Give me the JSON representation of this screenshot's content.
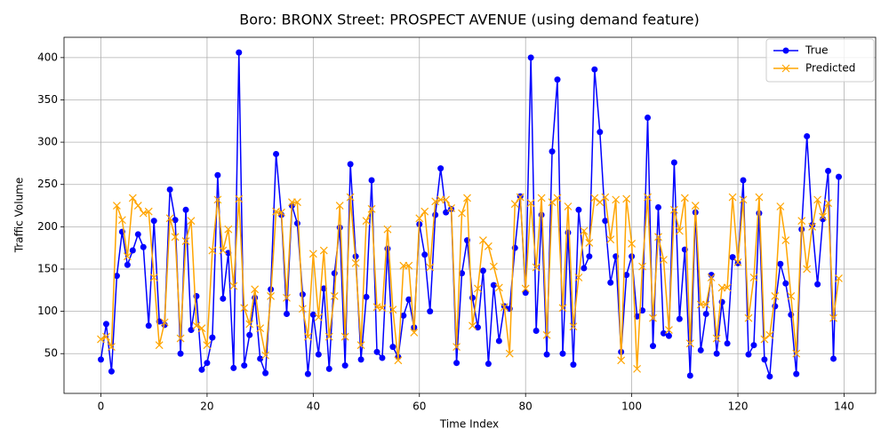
{
  "chart_data": {
    "type": "line",
    "title": "Boro: BRONX Street: PROSPECT AVENUE (using demand feature)",
    "x_label": "Time Index",
    "y_label": "Traffic Volume",
    "x": [
      0,
      1,
      2,
      3,
      4,
      5,
      6,
      7,
      8,
      9,
      10,
      11,
      12,
      13,
      14,
      15,
      16,
      17,
      18,
      19,
      20,
      21,
      22,
      23,
      24,
      25,
      26,
      27,
      28,
      29,
      30,
      31,
      32,
      33,
      34,
      35,
      36,
      37,
      38,
      39,
      40,
      41,
      42,
      43,
      44,
      45,
      46,
      47,
      48,
      49,
      50,
      51,
      52,
      53,
      54,
      55,
      56,
      57,
      58,
      59,
      60,
      61,
      62,
      63,
      64,
      65,
      66,
      67,
      68,
      69,
      70,
      71,
      72,
      73,
      74,
      75,
      76,
      77,
      78,
      79,
      80,
      81,
      82,
      83,
      84,
      85,
      86,
      87,
      88,
      89,
      90,
      91,
      92,
      93,
      94,
      95,
      96,
      97,
      98,
      99,
      100,
      101,
      102,
      103,
      104,
      105,
      106,
      107,
      108,
      109,
      110,
      111,
      112,
      113,
      114,
      115,
      116,
      117,
      118,
      119,
      120,
      121,
      122,
      123,
      124,
      125,
      126,
      127,
      128,
      129,
      130,
      131,
      132,
      133,
      134,
      135,
      136,
      137,
      138,
      139
    ],
    "series": [
      {
        "name": "True",
        "color": "#0000ff",
        "marker": "o",
        "values": [
          43,
          85,
          29,
          142,
          194,
          155,
          172,
          191,
          176,
          83,
          207,
          88,
          84,
          244,
          208,
          50,
          220,
          78,
          118,
          31,
          39,
          69,
          261,
          115,
          169,
          33,
          406,
          36,
          72,
          116,
          44,
          27,
          126,
          286,
          214,
          97,
          225,
          204,
          120,
          26,
          96,
          49,
          127,
          32,
          145,
          199,
          36,
          274,
          165,
          43,
          117,
          255,
          52,
          45,
          174,
          58,
          46,
          95,
          114,
          81,
          203,
          167,
          100,
          214,
          269,
          217,
          221,
          39,
          145,
          184,
          116,
          81,
          148,
          38,
          131,
          65,
          106,
          103,
          175,
          236,
          122,
          400,
          77,
          214,
          49,
          289,
          374,
          50,
          193,
          37,
          220,
          151,
          165,
          386,
          312,
          207,
          134,
          165,
          52,
          143,
          165,
          94,
          101,
          329,
          59,
          223,
          74,
          71,
          276,
          91,
          173,
          24,
          217,
          54,
          97,
          143,
          50,
          111,
          62,
          164,
          157,
          255,
          49,
          60,
          216,
          43,
          23,
          106,
          156,
          133,
          96,
          26,
          197,
          307,
          202,
          132,
          209,
          266,
          44,
          259
        ]
      },
      {
        "name": "Predicted",
        "color": "#ffa500",
        "marker": "x",
        "values": [
          67,
          70,
          58,
          225,
          208,
          165,
          234,
          225,
          216,
          218,
          140,
          60,
          87,
          210,
          188,
          68,
          183,
          207,
          83,
          80,
          60,
          172,
          232,
          172,
          197,
          130,
          233,
          104,
          85,
          126,
          80,
          48,
          118,
          218,
          217,
          116,
          229,
          229,
          103,
          70,
          168,
          93,
          172,
          70,
          118,
          225,
          70,
          235,
          157,
          60,
          207,
          221,
          105,
          104,
          197,
          102,
          42,
          154,
          154,
          75,
          210,
          218,
          152,
          230,
          232,
          232,
          222,
          58,
          216,
          234,
          83,
          127,
          184,
          177,
          153,
          128,
          105,
          50,
          227,
          235,
          127,
          228,
          152,
          234,
          72,
          229,
          234,
          104,
          224,
          82,
          140,
          195,
          181,
          234,
          229,
          235,
          185,
          232,
          42,
          233,
          180,
          32,
          153,
          235,
          92,
          188,
          161,
          78,
          220,
          195,
          234,
          62,
          225,
          108,
          108,
          140,
          68,
          128,
          128,
          235,
          158,
          232,
          92,
          140,
          235,
          67,
          72,
          118,
          224,
          184,
          118,
          50,
          207,
          150,
          200,
          232,
          212,
          228,
          92,
          139
        ]
      }
    ],
    "xlim": [
      -6.95,
      145.95
    ],
    "ylim": [
      3,
      424
    ],
    "xticks": [
      0,
      20,
      40,
      60,
      80,
      100,
      120,
      140
    ],
    "yticks": [
      50,
      100,
      150,
      200,
      250,
      300,
      350,
      400
    ],
    "grid": true,
    "legend": "upper right"
  }
}
